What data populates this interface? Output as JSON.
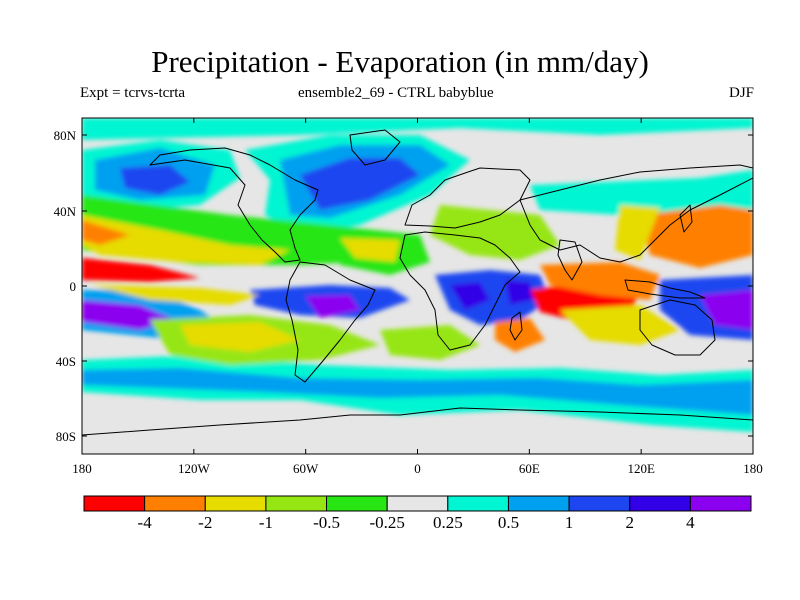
{
  "title": "Precipitation - Evaporation (in mm/day)",
  "subtitle_left": "Expt = tcrvs-tcrta",
  "subtitle_center": "ensemble2_69 - CTRL babyblue",
  "subtitle_right": "DJF",
  "axes": {
    "lat_ticks": [
      "80N",
      "40N",
      "0",
      "40S",
      "80S"
    ],
    "lon_ticks": [
      "180",
      "120W",
      "60W",
      "0",
      "60E",
      "120E",
      "180"
    ]
  },
  "colorbar": {
    "colors": [
      "#ff0000",
      "#ff8000",
      "#e6dc00",
      "#96e614",
      "#28e614",
      "#e6e6e6",
      "#00f5d2",
      "#00a0f0",
      "#1e46f0",
      "#3200e6",
      "#8c00f0"
    ],
    "labels": [
      "-4",
      "-2",
      "-1",
      "-0.5",
      "-0.25",
      "0.25",
      "0.5",
      "1",
      "2",
      "4"
    ]
  }
}
